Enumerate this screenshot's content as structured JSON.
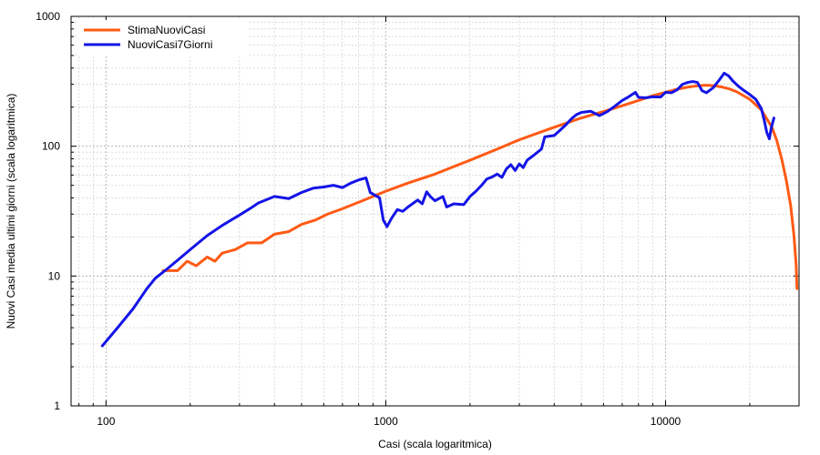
{
  "chart_data": {
    "type": "line",
    "title": "",
    "xlabel": "Casi (scala logaritmica)",
    "ylabel": "Nuovi Casi media ultimi giorni (scala logaritmica)",
    "xscale": "log",
    "yscale": "log",
    "xlim": [
      75,
      30000
    ],
    "ylim": [
      1,
      1000
    ],
    "x_tick_labels": [
      "100",
      "1000",
      "10000"
    ],
    "x_tick_values": [
      100,
      1000,
      10000
    ],
    "y_tick_labels": [
      "1",
      "10",
      "100",
      "1000"
    ],
    "y_tick_values": [
      1,
      10,
      100,
      1000
    ],
    "grid": true,
    "legend_position": "top-left",
    "series": [
      {
        "name": "StimaNuoviCasi",
        "color": "#ff5a14",
        "points": [
          [
            160,
            11
          ],
          [
            180,
            11
          ],
          [
            195,
            13
          ],
          [
            210,
            12
          ],
          [
            230,
            14
          ],
          [
            245,
            13
          ],
          [
            260,
            15
          ],
          [
            290,
            16
          ],
          [
            320,
            18
          ],
          [
            360,
            18
          ],
          [
            400,
            21
          ],
          [
            450,
            22
          ],
          [
            500,
            25
          ],
          [
            560,
            27
          ],
          [
            620,
            30
          ],
          [
            700,
            33
          ],
          [
            800,
            37
          ],
          [
            900,
            41
          ],
          [
            1000,
            45
          ],
          [
            1200,
            52
          ],
          [
            1500,
            61
          ],
          [
            2000,
            78
          ],
          [
            2500,
            95
          ],
          [
            3000,
            112
          ],
          [
            4000,
            140
          ],
          [
            5000,
            165
          ],
          [
            6000,
            185
          ],
          [
            7000,
            205
          ],
          [
            8000,
            225
          ],
          [
            9000,
            245
          ],
          [
            10000,
            260
          ],
          [
            11000,
            275
          ],
          [
            12000,
            285
          ],
          [
            13000,
            292
          ],
          [
            14000,
            295
          ],
          [
            15000,
            292
          ],
          [
            16000,
            285
          ],
          [
            17000,
            275
          ],
          [
            18000,
            262
          ],
          [
            20000,
            230
          ],
          [
            22000,
            190
          ],
          [
            24000,
            140
          ],
          [
            25000,
            110
          ],
          [
            26000,
            80
          ],
          [
            27000,
            55
          ],
          [
            28000,
            35
          ],
          [
            28800,
            20
          ],
          [
            29300,
            12
          ],
          [
            29500,
            8
          ]
        ]
      },
      {
        "name": "NuoviCasi7Giorni",
        "color": "#1414e6",
        "points": [
          [
            97,
            2.9
          ],
          [
            110,
            4.0
          ],
          [
            125,
            5.6
          ],
          [
            140,
            8.0
          ],
          [
            150,
            9.6
          ],
          [
            165,
            11.3
          ],
          [
            180,
            13.2
          ],
          [
            200,
            16.0
          ],
          [
            230,
            20.5
          ],
          [
            260,
            24.5
          ],
          [
            300,
            29.5
          ],
          [
            330,
            33.5
          ],
          [
            350,
            36.5
          ],
          [
            400,
            41.0
          ],
          [
            450,
            39.5
          ],
          [
            500,
            44.0
          ],
          [
            550,
            47.5
          ],
          [
            600,
            48.5
          ],
          [
            650,
            50.0
          ],
          [
            700,
            48.0
          ],
          [
            750,
            52.0
          ],
          [
            800,
            55.0
          ],
          [
            850,
            57.0
          ],
          [
            880,
            44.0
          ],
          [
            950,
            40.0
          ],
          [
            980,
            27.0
          ],
          [
            1010,
            24.0
          ],
          [
            1050,
            28.0
          ],
          [
            1100,
            32.5
          ],
          [
            1150,
            31.5
          ],
          [
            1200,
            34.0
          ],
          [
            1300,
            38.5
          ],
          [
            1350,
            36.0
          ],
          [
            1400,
            44.5
          ],
          [
            1450,
            40.5
          ],
          [
            1500,
            38.0
          ],
          [
            1600,
            41.0
          ],
          [
            1650,
            34.0
          ],
          [
            1750,
            36.0
          ],
          [
            1900,
            35.5
          ],
          [
            2000,
            41.0
          ],
          [
            2100,
            45.0
          ],
          [
            2200,
            50.0
          ],
          [
            2300,
            56.0
          ],
          [
            2400,
            58.0
          ],
          [
            2500,
            61.0
          ],
          [
            2600,
            57.5
          ],
          [
            2700,
            67.0
          ],
          [
            2800,
            72.0
          ],
          [
            2900,
            65.0
          ],
          [
            3000,
            73.0
          ],
          [
            3100,
            68.5
          ],
          [
            3200,
            78.0
          ],
          [
            3400,
            86.0
          ],
          [
            3600,
            95.0
          ],
          [
            3700,
            118.0
          ],
          [
            4000,
            121.0
          ],
          [
            4200,
            133.0
          ],
          [
            4400,
            146.0
          ],
          [
            4600,
            162.0
          ],
          [
            4800,
            175.0
          ],
          [
            5000,
            182.0
          ],
          [
            5400,
            186.0
          ],
          [
            5800,
            172.0
          ],
          [
            6200,
            185.0
          ],
          [
            6600,
            204.0
          ],
          [
            7000,
            225.0
          ],
          [
            7400,
            241.0
          ],
          [
            7800,
            260.0
          ],
          [
            8000,
            238.0
          ],
          [
            8500,
            236.0
          ],
          [
            9000,
            240.0
          ],
          [
            9600,
            239.0
          ],
          [
            10000,
            260.0
          ],
          [
            10500,
            258.0
          ],
          [
            11000,
            272.0
          ],
          [
            11500,
            300.0
          ],
          [
            12000,
            310.0
          ],
          [
            12500,
            315.0
          ],
          [
            13000,
            310.0
          ],
          [
            13500,
            268.0
          ],
          [
            14000,
            258.0
          ],
          [
            14800,
            282.0
          ],
          [
            15500,
            320.0
          ],
          [
            16200,
            365.0
          ],
          [
            16800,
            348.0
          ],
          [
            17400,
            318.0
          ],
          [
            18200,
            290.0
          ],
          [
            19000,
            270.0
          ],
          [
            20000,
            250.0
          ],
          [
            21000,
            230.0
          ],
          [
            22000,
            195.0
          ],
          [
            22500,
            160.0
          ],
          [
            23000,
            128.0
          ],
          [
            23500,
            114.0
          ],
          [
            23900,
            140.0
          ],
          [
            24400,
            165.0
          ]
        ]
      }
    ]
  }
}
